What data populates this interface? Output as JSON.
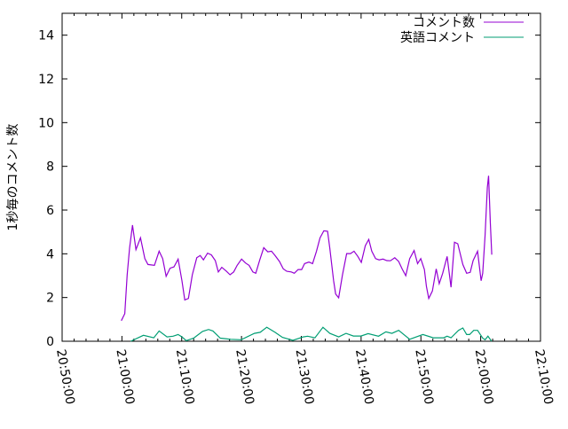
{
  "chart_data": {
    "type": "line",
    "title": "",
    "xlabel": "",
    "ylabel": "1秒毎のコメント数",
    "xlim": [
      "20:50:00",
      "22:10:00"
    ],
    "ylim": [
      0,
      15
    ],
    "xticks": [
      "20:50:00",
      "21:00:00",
      "21:10:00",
      "21:20:00",
      "21:30:00",
      "21:40:00",
      "21:50:00",
      "22:00:00",
      "22:10:00"
    ],
    "yticks": [
      "0",
      "2",
      "4",
      "6",
      "8",
      "10",
      "12",
      "14"
    ],
    "grid": false,
    "legend": "top-right",
    "series": [
      {
        "name": "コメント数",
        "color": "#9400d3",
        "points": [
          [
            "20:59:54",
            0.94
          ],
          [
            "21:00:29",
            1.26
          ],
          [
            "21:00:53",
            3.04
          ],
          [
            "21:01:17",
            4.26
          ],
          [
            "21:01:46",
            5.31
          ],
          [
            "21:02:21",
            4.19
          ],
          [
            "21:03:06",
            4.73
          ],
          [
            "21:03:50",
            3.78
          ],
          [
            "21:04:21",
            3.51
          ],
          [
            "21:05:26",
            3.47
          ],
          [
            "21:06:13",
            4.12
          ],
          [
            "21:06:49",
            3.78
          ],
          [
            "21:07:24",
            2.97
          ],
          [
            "21:08:03",
            3.34
          ],
          [
            "21:08:42",
            3.4
          ],
          [
            "21:09:24",
            3.76
          ],
          [
            "21:10:02",
            2.77
          ],
          [
            "21:10:31",
            1.89
          ],
          [
            "21:11:07",
            1.96
          ],
          [
            "21:11:46",
            3.04
          ],
          [
            "21:12:31",
            3.82
          ],
          [
            "21:13:06",
            3.92
          ],
          [
            "21:13:38",
            3.72
          ],
          [
            "21:14:20",
            4.03
          ],
          [
            "21:14:58",
            3.95
          ],
          [
            "21:15:37",
            3.69
          ],
          [
            "21:16:07",
            3.17
          ],
          [
            "21:16:42",
            3.38
          ],
          [
            "21:17:27",
            3.21
          ],
          [
            "21:18:05",
            3.04
          ],
          [
            "21:18:41",
            3.17
          ],
          [
            "21:19:16",
            3.47
          ],
          [
            "21:20:01",
            3.76
          ],
          [
            "21:20:40",
            3.58
          ],
          [
            "21:21:16",
            3.47
          ],
          [
            "21:21:54",
            3.17
          ],
          [
            "21:22:23",
            3.11
          ],
          [
            "21:23:03",
            3.72
          ],
          [
            "21:23:43",
            4.28
          ],
          [
            "21:24:23",
            4.09
          ],
          [
            "21:25:01",
            4.12
          ],
          [
            "21:25:36",
            3.92
          ],
          [
            "21:26:21",
            3.65
          ],
          [
            "21:26:59",
            3.31
          ],
          [
            "21:27:35",
            3.2
          ],
          [
            "21:28:19",
            3.17
          ],
          [
            "21:28:50",
            3.11
          ],
          [
            "21:29:28",
            3.28
          ],
          [
            "21:30:04",
            3.28
          ],
          [
            "21:30:33",
            3.55
          ],
          [
            "21:31:17",
            3.62
          ],
          [
            "21:31:53",
            3.55
          ],
          [
            "21:32:32",
            4.12
          ],
          [
            "21:33:08",
            4.73
          ],
          [
            "21:33:46",
            5.05
          ],
          [
            "21:34:24",
            5.03
          ],
          [
            "21:34:46",
            4.26
          ],
          [
            "21:35:24",
            2.77
          ],
          [
            "21:35:45",
            2.16
          ],
          [
            "21:36:15",
            1.99
          ],
          [
            "21:36:53",
            3.04
          ],
          [
            "21:37:35",
            4.01
          ],
          [
            "21:38:13",
            4.01
          ],
          [
            "21:38:49",
            4.12
          ],
          [
            "21:39:27",
            3.88
          ],
          [
            "21:40:02",
            3.61
          ],
          [
            "21:40:42",
            4.37
          ],
          [
            "21:41:17",
            4.66
          ],
          [
            "21:41:47",
            4.12
          ],
          [
            "21:42:25",
            3.78
          ],
          [
            "21:43:01",
            3.72
          ],
          [
            "21:43:40",
            3.76
          ],
          [
            "21:44:18",
            3.69
          ],
          [
            "21:44:54",
            3.68
          ],
          [
            "21:45:38",
            3.82
          ],
          [
            "21:46:17",
            3.65
          ],
          [
            "21:46:52",
            3.31
          ],
          [
            "21:47:28",
            3.0
          ],
          [
            "21:48:07",
            3.78
          ],
          [
            "21:48:52",
            4.15
          ],
          [
            "21:49:27",
            3.55
          ],
          [
            "21:49:59",
            3.78
          ],
          [
            "21:50:35",
            3.28
          ],
          [
            "21:50:56",
            2.5
          ],
          [
            "21:51:19",
            1.96
          ],
          [
            "21:51:55",
            2.3
          ],
          [
            "21:52:34",
            3.31
          ],
          [
            "21:53:04",
            2.63
          ],
          [
            "21:53:39",
            3.11
          ],
          [
            "21:54:23",
            3.88
          ],
          [
            "21:55:02",
            2.47
          ],
          [
            "21:55:37",
            4.53
          ],
          [
            "21:56:10",
            4.46
          ],
          [
            "21:57:01",
            3.51
          ],
          [
            "21:57:39",
            3.11
          ],
          [
            "21:58:15",
            3.15
          ],
          [
            "21:58:44",
            3.69
          ],
          [
            "21:59:29",
            4.12
          ],
          [
            "22:00:04",
            2.77
          ],
          [
            "22:00:20",
            3.11
          ],
          [
            "22:00:44",
            4.86
          ],
          [
            "22:01:07",
            7.03
          ],
          [
            "22:01:19",
            7.57
          ],
          [
            "22:01:37",
            5.4
          ],
          [
            "22:01:51",
            3.96
          ]
        ]
      },
      {
        "name": "英語コメント",
        "color": "#009e73",
        "points": [
          [
            "21:01:28",
            0.0
          ],
          [
            "21:03:36",
            0.27
          ],
          [
            "21:05:20",
            0.16
          ],
          [
            "21:06:13",
            0.47
          ],
          [
            "21:07:33",
            0.2
          ],
          [
            "21:08:33",
            0.23
          ],
          [
            "21:09:24",
            0.31
          ],
          [
            "21:10:02",
            0.2
          ],
          [
            "21:10:46",
            0.03
          ],
          [
            "21:12:00",
            0.14
          ],
          [
            "21:13:29",
            0.45
          ],
          [
            "21:14:29",
            0.54
          ],
          [
            "21:15:13",
            0.47
          ],
          [
            "21:16:27",
            0.14
          ],
          [
            "21:18:11",
            0.09
          ],
          [
            "21:19:56",
            0.07
          ],
          [
            "21:22:09",
            0.36
          ],
          [
            "21:23:08",
            0.41
          ],
          [
            "21:24:14",
            0.64
          ],
          [
            "21:25:36",
            0.41
          ],
          [
            "21:26:50",
            0.18
          ],
          [
            "21:28:35",
            0.04
          ],
          [
            "21:30:19",
            0.2
          ],
          [
            "21:31:03",
            0.23
          ],
          [
            "21:32:17",
            0.16
          ],
          [
            "21:33:37",
            0.64
          ],
          [
            "21:34:46",
            0.36
          ],
          [
            "21:36:15",
            0.2
          ],
          [
            "21:37:29",
            0.36
          ],
          [
            "21:38:43",
            0.24
          ],
          [
            "21:39:58",
            0.24
          ],
          [
            "21:41:11",
            0.35
          ],
          [
            "21:42:55",
            0.23
          ],
          [
            "21:44:09",
            0.43
          ],
          [
            "21:45:09",
            0.36
          ],
          [
            "21:46:17",
            0.5
          ],
          [
            "21:48:07",
            0.09
          ],
          [
            "21:50:20",
            0.31
          ],
          [
            "21:52:04",
            0.16
          ],
          [
            "21:53:48",
            0.16
          ],
          [
            "21:54:23",
            0.23
          ],
          [
            "21:55:02",
            0.16
          ],
          [
            "21:56:17",
            0.5
          ],
          [
            "21:57:01",
            0.61
          ],
          [
            "21:57:39",
            0.31
          ],
          [
            "21:58:09",
            0.31
          ],
          [
            "21:58:50",
            0.5
          ],
          [
            "21:59:29",
            0.5
          ],
          [
            "22:00:20",
            0.14
          ],
          [
            "22:00:44",
            0.07
          ],
          [
            "22:01:13",
            0.23
          ],
          [
            "22:01:49",
            0.0
          ]
        ]
      }
    ]
  }
}
